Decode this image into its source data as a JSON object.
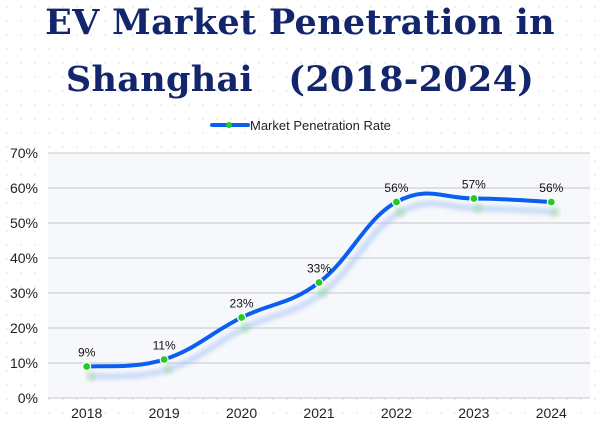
{
  "chart_data": {
    "type": "line",
    "title_line1": "EV Market Penetration in",
    "title_line2": "Shanghai　(2018-2024)",
    "categories": [
      "2018",
      "2019",
      "2020",
      "2021",
      "2022",
      "2023",
      "2024"
    ],
    "series": [
      {
        "name": "Market Penetration Rate",
        "values": [
          9,
          11,
          23,
          33,
          56,
          57,
          56
        ],
        "data_labels": [
          "9%",
          "11%",
          "23%",
          "33%",
          "56%",
          "57%",
          "56%"
        ]
      }
    ],
    "ylim": [
      0,
      70
    ],
    "yticks": [
      "0%",
      "10%",
      "20%",
      "30%",
      "40%",
      "50%",
      "60%",
      "70%"
    ],
    "xlabel": "",
    "ylabel": "",
    "grid": "horizontal",
    "legend": "top-center",
    "smooth": true,
    "colors": {
      "line": "#0a5ff0",
      "marker": "#22cc22",
      "title": "#14266b",
      "grid": "#d0d0d0",
      "plot_bg": "#f7f8fb"
    }
  }
}
